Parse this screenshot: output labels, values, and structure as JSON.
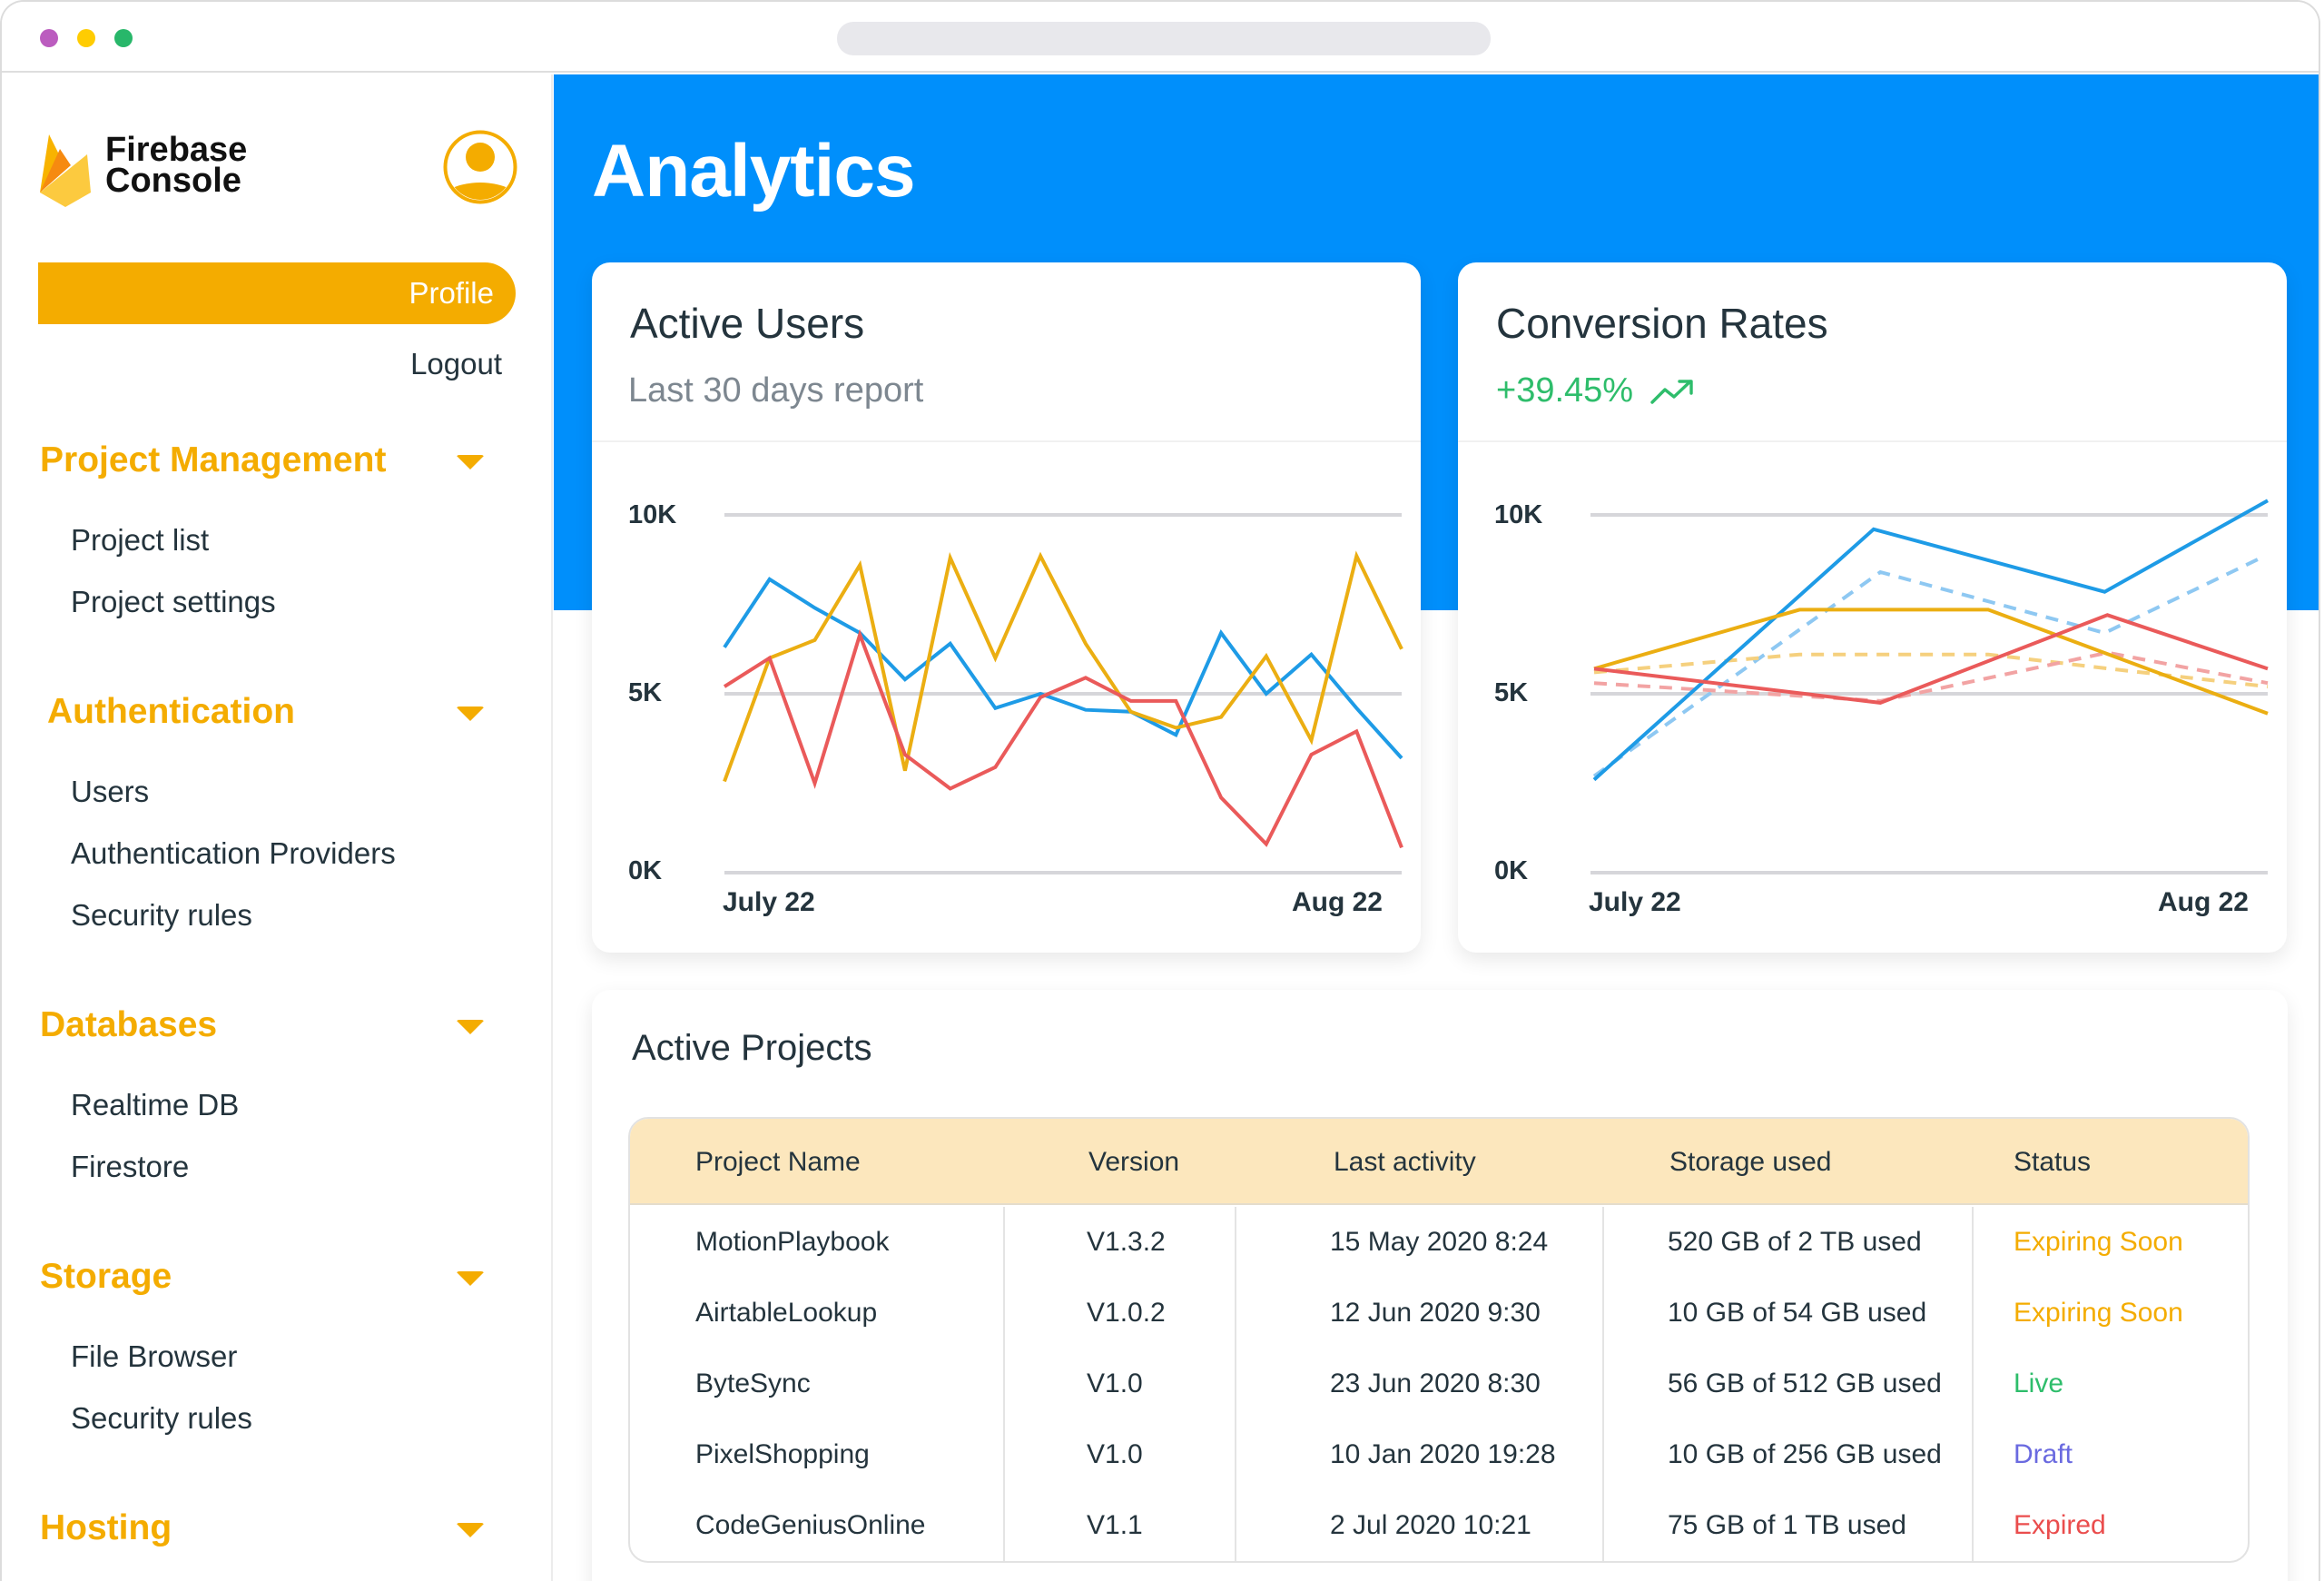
{
  "window": {
    "traffic_lights": [
      "#bb5cbf",
      "#ffcc02",
      "#28b76a"
    ]
  },
  "sidebar": {
    "brand_line1": "Firebase",
    "brand_line2": "Console",
    "profile_label": "Profile",
    "logout_label": "Logout",
    "sections": [
      {
        "label": "Project Management",
        "items": [
          "Project list",
          "Project settings"
        ]
      },
      {
        "label": "Authentication",
        "items": [
          "Users",
          "Authentication Providers",
          "Security rules"
        ]
      },
      {
        "label": "Databases",
        "items": [
          "Realtime DB",
          "Firestore"
        ]
      },
      {
        "label": "Storage",
        "items": [
          "File Browser",
          "Security rules"
        ]
      },
      {
        "label": "Hosting",
        "items": []
      }
    ]
  },
  "main": {
    "title": "Analytics",
    "active_users": {
      "title": "Active Users",
      "subtitle": "Last 30 days report"
    },
    "conversion_rates": {
      "title": "Conversion Rates",
      "change": "+39.45%"
    },
    "projects": {
      "title": "Active Projects",
      "columns": [
        "Project Name",
        "Version",
        "Last activity",
        "Storage used",
        "Status"
      ],
      "rows": [
        {
          "name": "MotionPlaybook",
          "version": "V1.3.2",
          "last_activity": "15 May 2020 8:24",
          "storage": "520 GB of 2 TB used",
          "status": "Expiring Soon",
          "status_color": "#f4ac00"
        },
        {
          "name": "AirtableLookup",
          "version": "V1.0.2",
          "last_activity": "12 Jun 2020 9:30",
          "storage": "10 GB of 54 GB used",
          "status": "Expiring Soon",
          "status_color": "#f4ac00"
        },
        {
          "name": "ByteSync",
          "version": "V1.0",
          "last_activity": "23 Jun 2020 8:30",
          "storage": "56 GB of 512 GB used",
          "status": "Live",
          "status_color": "#2ebd6b"
        },
        {
          "name": "PixelShopping",
          "version": "V1.0",
          "last_activity": "10 Jan 2020 19:28",
          "storage": "10 GB of 256 GB used",
          "status": "Draft",
          "status_color": "#6a6ae0"
        },
        {
          "name": "CodeGeniusOnline",
          "version": "V1.1",
          "last_activity": "2 Jul 2020 10:21",
          "storage": "75 GB of 1 TB used",
          "status": "Expired",
          "status_color": "#ea4d4d"
        }
      ]
    }
  },
  "colors": {
    "accent": "#f4ac00",
    "hero_blue": "#008ffb",
    "series_blue": "#1e9be6",
    "series_yellow": "#ebae12",
    "series_red": "#ea5a5a",
    "positive": "#2ebd6b"
  },
  "chart_data": [
    {
      "type": "line",
      "title": "Active Users",
      "subtitle": "Last 30 days report",
      "xlabel": "",
      "ylabel": "",
      "x_tick_labels": [
        "July 22",
        "Aug 22"
      ],
      "y_tick_labels": [
        "0K",
        "5K",
        "10K"
      ],
      "ylim": [
        0,
        10000
      ],
      "grid": true,
      "legend": null,
      "x": [
        1,
        2,
        3,
        4,
        5,
        6,
        7,
        8,
        9,
        10,
        11,
        12,
        13,
        14,
        15,
        16
      ],
      "series": [
        {
          "name": "blue",
          "color": "#1e9be6",
          "style": "solid",
          "values": [
            6300,
            8200,
            7400,
            6700,
            5400,
            6400,
            4600,
            5000,
            4550,
            4500,
            3850,
            6700,
            5000,
            6100,
            4600,
            3200
          ]
        },
        {
          "name": "yellow",
          "color": "#ebae12",
          "style": "solid",
          "values": [
            2550,
            6000,
            6500,
            8600,
            2850,
            8800,
            6000,
            8850,
            6400,
            4500,
            4050,
            4350,
            6050,
            3700,
            8850,
            6250
          ]
        },
        {
          "name": "red",
          "color": "#ea5a5a",
          "style": "solid",
          "values": [
            5200,
            6000,
            2500,
            6650,
            3300,
            2350,
            2950,
            4900,
            5450,
            4800,
            4800,
            2100,
            800,
            3300,
            3950,
            700
          ]
        }
      ]
    },
    {
      "type": "line",
      "title": "Conversion Rates",
      "subtitle": "+39.45%",
      "xlabel": "",
      "ylabel": "",
      "x_tick_labels": [
        "July 22",
        "Aug 22"
      ],
      "y_tick_labels": [
        "0K",
        "5K",
        "10K"
      ],
      "ylim": [
        0,
        10000
      ],
      "grid": true,
      "legend": null,
      "series": [
        {
          "name": "blue",
          "color": "#1e9be6",
          "style": "solid",
          "points": [
            [
              0,
              2600
            ],
            [
              0.415,
              9600
            ],
            [
              0.758,
              7850
            ],
            [
              1.0,
              10400
            ]
          ]
        },
        {
          "name": "blue-dashed",
          "color": "#8ec8f2",
          "style": "dashed",
          "points": [
            [
              0,
              2700
            ],
            [
              0.425,
              8400
            ],
            [
              0.758,
              6700
            ],
            [
              0.99,
              8800
            ]
          ]
        },
        {
          "name": "yellow",
          "color": "#ebae12",
          "style": "solid",
          "points": [
            [
              0,
              5700
            ],
            [
              0.305,
              7350
            ],
            [
              0.585,
              7350
            ],
            [
              1.0,
              4450
            ]
          ]
        },
        {
          "name": "yellow-dashed",
          "color": "#f5d07e",
          "style": "dashed",
          "points": [
            [
              0,
              5600
            ],
            [
              0.305,
              6100
            ],
            [
              0.585,
              6100
            ],
            [
              0.765,
              5700
            ],
            [
              1.0,
              5200
            ]
          ]
        },
        {
          "name": "red",
          "color": "#ea5a5a",
          "style": "solid",
          "points": [
            [
              0,
              5700
            ],
            [
              0.425,
              4750
            ],
            [
              0.762,
              7200
            ],
            [
              1.0,
              5700
            ]
          ]
        },
        {
          "name": "red-dashed",
          "color": "#f2a3a3",
          "style": "dashed",
          "points": [
            [
              0,
              5300
            ],
            [
              0.425,
              4800
            ],
            [
              0.762,
              6150
            ],
            [
              1.0,
              5300
            ]
          ]
        }
      ]
    }
  ]
}
